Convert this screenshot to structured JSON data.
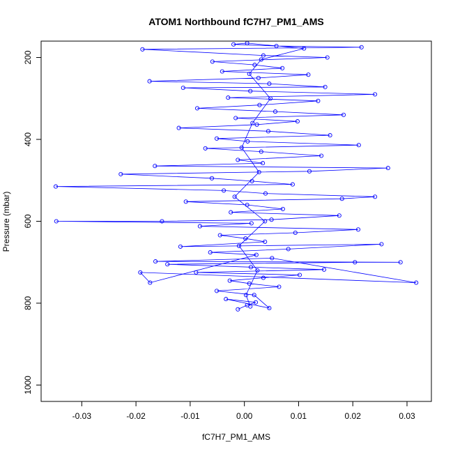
{
  "chart_data": {
    "type": "scatter",
    "title": "ATOM1 Northbound fC7H7_PM1_AMS",
    "xlabel": "fC7H7_PM1_AMS",
    "ylabel": "Pressure (mbar)",
    "xlim": [
      -0.0375,
      0.0345
    ],
    "ylim": [
      1040,
      160
    ],
    "y_inverted": true,
    "x_ticks": [
      "-0.03",
      "-0.02",
      "-0.01",
      "0.00",
      "0.01",
      "0.02",
      "0.03"
    ],
    "x_tick_values": [
      -0.03,
      -0.02,
      -0.01,
      0.0,
      0.01,
      0.02,
      0.03
    ],
    "y_ticks": [
      "200",
      "400",
      "600",
      "800",
      "1000"
    ],
    "y_tick_values": [
      200,
      400,
      600,
      800,
      1000
    ],
    "grid": false,
    "marker": "open-circle",
    "connect_points": true,
    "series": [
      {
        "color": "#0000ff",
        "points": [
          [
            -0.0012,
            815
          ],
          [
            0.0005,
            805
          ],
          [
            0.0021,
            798
          ],
          [
            -0.0034,
            790
          ],
          [
            0.0046,
            812
          ],
          [
            0.0018,
            780
          ],
          [
            -0.0051,
            770
          ],
          [
            0.0064,
            760
          ],
          [
            0.0009,
            752
          ],
          [
            -0.0027,
            745
          ],
          [
            0.0035,
            738
          ],
          [
            0.0102,
            731
          ],
          [
            -0.0089,
            725
          ],
          [
            0.0147,
            718
          ],
          [
            0.0012,
            712
          ],
          [
            -0.0142,
            705
          ],
          [
            0.0204,
            700
          ],
          [
            0.0288,
            700
          ],
          [
            -0.0164,
            698
          ],
          [
            0.0051,
            690
          ],
          [
            0.0317,
            750
          ],
          [
            -0.0192,
            725
          ],
          [
            -0.0174,
            750
          ],
          [
            0.0022,
            682
          ],
          [
            -0.0063,
            676
          ],
          [
            0.0081,
            668
          ],
          [
            0.0253,
            656
          ],
          [
            -0.0118,
            662
          ],
          [
            0.0038,
            650
          ],
          [
            0.0002,
            642
          ],
          [
            -0.0045,
            634
          ],
          [
            0.0094,
            628
          ],
          [
            0.021,
            620
          ],
          [
            -0.0082,
            612
          ],
          [
            0.0013,
            605
          ],
          [
            -0.0347,
            600
          ],
          [
            -0.0152,
            600
          ],
          [
            0.005,
            596
          ],
          [
            0.0175,
            586
          ],
          [
            -0.0025,
            578
          ],
          [
            0.0071,
            570
          ],
          [
            0.0005,
            560
          ],
          [
            -0.0108,
            552
          ],
          [
            0.018,
            545
          ],
          [
            0.0241,
            540
          ],
          [
            0.0039,
            532
          ],
          [
            -0.0038,
            525
          ],
          [
            -0.0348,
            515
          ],
          [
            0.0089,
            510
          ],
          [
            0.0014,
            502
          ],
          [
            -0.006,
            495
          ],
          [
            -0.0228,
            485
          ],
          [
            0.012,
            478
          ],
          [
            0.0265,
            470
          ],
          [
            -0.0165,
            465
          ],
          [
            0.0034,
            458
          ],
          [
            -0.0012,
            450
          ],
          [
            0.0142,
            440
          ],
          [
            0.0031,
            430
          ],
          [
            -0.0072,
            422
          ],
          [
            0.0211,
            414
          ],
          [
            0.0006,
            405
          ],
          [
            -0.0051,
            398
          ],
          [
            0.0158,
            390
          ],
          [
            0.0044,
            380
          ],
          [
            -0.0121,
            372
          ],
          [
            0.0023,
            364
          ],
          [
            0.0098,
            356
          ],
          [
            -0.0016,
            348
          ],
          [
            0.0183,
            340
          ],
          [
            0.0057,
            332
          ],
          [
            -0.0087,
            324
          ],
          [
            0.0028,
            316
          ],
          [
            0.0136,
            306
          ],
          [
            -0.003,
            298
          ],
          [
            0.0241,
            290
          ],
          [
            0.0011,
            282
          ],
          [
            -0.0113,
            274
          ],
          [
            0.0149,
            272
          ],
          [
            0.0046,
            264
          ],
          [
            -0.0175,
            258
          ],
          [
            0.0026,
            250
          ],
          [
            0.0118,
            242
          ],
          [
            -0.0041,
            234
          ],
          [
            0.007,
            226
          ],
          [
            0.0019,
            218
          ],
          [
            -0.0059,
            210
          ],
          [
            0.0153,
            200
          ],
          [
            0.0035,
            195
          ],
          [
            -0.0188,
            180
          ],
          [
            0.0216,
            175
          ],
          [
            0.0059,
            172
          ],
          [
            -0.002,
            168
          ],
          [
            0.0005,
            165
          ],
          [
            0.011,
            178
          ],
          [
            0.0031,
            205
          ],
          [
            0.0009,
            240
          ],
          [
            0.0048,
            300
          ],
          [
            0.0015,
            360
          ],
          [
            -0.0005,
            420
          ],
          [
            0.0027,
            480
          ],
          [
            -0.0018,
            540
          ],
          [
            0.0038,
            600
          ],
          [
            -0.001,
            660
          ],
          [
            0.0024,
            720
          ],
          [
            0.0003,
            780
          ],
          [
            0.0011,
            808
          ]
        ]
      }
    ]
  }
}
